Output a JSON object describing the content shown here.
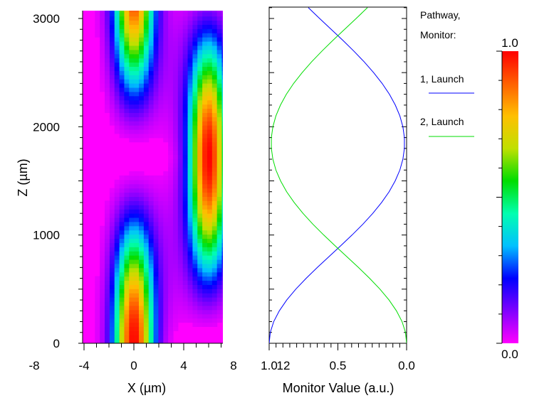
{
  "chart_data": [
    {
      "type": "heatmap",
      "title": "",
      "xlabel": "X (µm)",
      "ylabel": "Z (µm)",
      "xlim": [
        -9,
        14.5
      ],
      "ylim": [
        0,
        3100
      ],
      "x_ticks": [
        -8,
        -4,
        0,
        4,
        8,
        12
      ],
      "x_tick_labels": [
        "-8",
        "-4",
        "0",
        "4",
        "8",
        "12"
      ],
      "y_ticks": [
        0,
        1000,
        2000,
        3000
      ],
      "y_tick_labels": [
        "0",
        "1000",
        "2000",
        "3000"
      ],
      "background_color": "#ff00ff",
      "waveguides": [
        {
          "center_x": 0,
          "width": 4
        },
        {
          "center_x": 6,
          "width": 4
        }
      ],
      "coupling_length": 1720,
      "colorbar": {
        "min": 0.0,
        "max": 1.0,
        "min_label": "0.0",
        "max_label": "1.0",
        "colors": [
          "#ff00ff",
          "#8000ff",
          "#0000ff",
          "#00c0ff",
          "#00ffb0",
          "#00dd00",
          "#c0e000",
          "#ffc000",
          "#ff6000",
          "#ff0000"
        ]
      }
    },
    {
      "type": "line",
      "xlabel": "Monitor Value (a.u.)",
      "xlim": [
        1.0,
        0.0
      ],
      "ylim": [
        0,
        3100
      ],
      "x_ticks": [
        1.0,
        0.5,
        0.0
      ],
      "x_tick_labels": [
        "1.0",
        "0.5",
        "0.0"
      ],
      "legend_title": [
        "Pathway,",
        "Monitor:"
      ],
      "legend_placement": "right",
      "series": [
        {
          "name": "1, Launch",
          "color": "#0000ff",
          "z": [
            0,
            100,
            200,
            300,
            400,
            500,
            600,
            700,
            800,
            900,
            1000,
            1100,
            1200,
            1300,
            1400,
            1500,
            1600,
            1700,
            1800,
            1900,
            2000,
            2100,
            2200,
            2300,
            2400,
            2500,
            2600,
            2700,
            2800,
            2900,
            3000,
            3100
          ],
          "value": [
            1.0,
            0.992,
            0.967,
            0.926,
            0.872,
            0.806,
            0.731,
            0.65,
            0.565,
            0.48,
            0.397,
            0.318,
            0.246,
            0.182,
            0.127,
            0.083,
            0.049,
            0.027,
            0.016,
            0.016,
            0.027,
            0.049,
            0.082,
            0.125,
            0.178,
            0.24,
            0.309,
            0.385,
            0.465,
            0.549,
            0.633,
            0.715
          ]
        },
        {
          "name": "2, Launch",
          "color": "#00dd00",
          "z": [
            0,
            100,
            200,
            300,
            400,
            500,
            600,
            700,
            800,
            900,
            1000,
            1100,
            1200,
            1300,
            1400,
            1500,
            1600,
            1700,
            1800,
            1900,
            2000,
            2100,
            2200,
            2300,
            2400,
            2500,
            2600,
            2700,
            2800,
            2900,
            3000,
            3100
          ],
          "value": [
            0.0,
            0.008,
            0.033,
            0.074,
            0.128,
            0.194,
            0.269,
            0.35,
            0.435,
            0.52,
            0.603,
            0.682,
            0.754,
            0.818,
            0.873,
            0.917,
            0.951,
            0.973,
            0.984,
            0.984,
            0.973,
            0.951,
            0.918,
            0.875,
            0.822,
            0.76,
            0.691,
            0.615,
            0.535,
            0.451,
            0.367,
            0.285
          ]
        }
      ]
    }
  ]
}
